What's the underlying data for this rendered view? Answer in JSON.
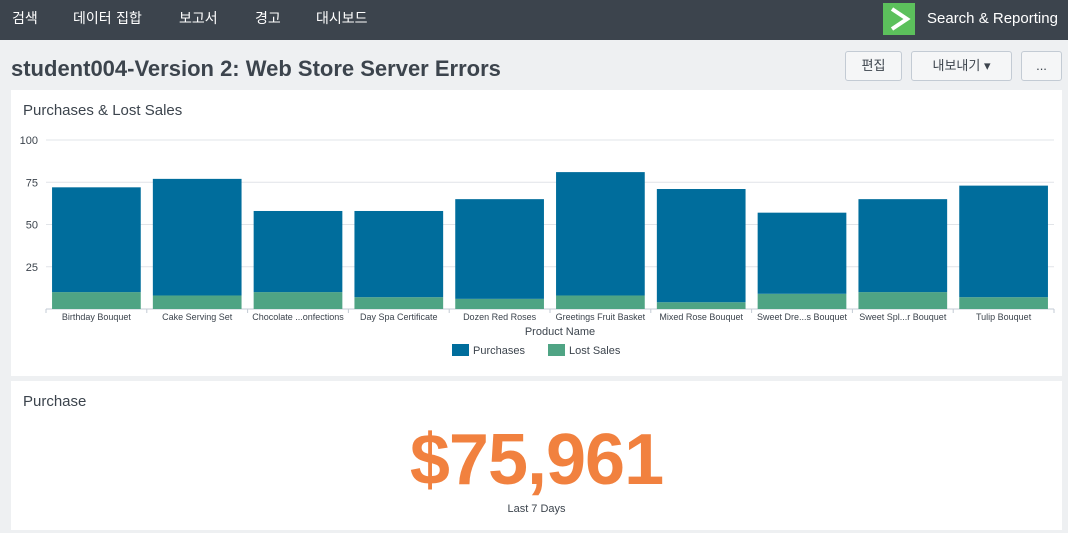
{
  "nav": {
    "items": [
      "검색",
      "데이터 집합",
      "보고서",
      "경고",
      "대시보드"
    ],
    "app_name": "Search & Reporting"
  },
  "page": {
    "title": "student004-Version 2: Web Store Server Errors",
    "edit_label": "편집",
    "export_label": "내보내기 ▾",
    "more_label": "..."
  },
  "panel1": {
    "title": "Purchases & Lost Sales"
  },
  "panel2": {
    "title": "Purchase",
    "value": "$75,961",
    "caption": "Last 7 Days"
  },
  "colors": {
    "purchases": "#006d9c",
    "lost_sales": "#4fa484",
    "accent": "#f1813f"
  },
  "chart_data": {
    "type": "bar",
    "stacked": true,
    "categories": [
      "Birthday Bouquet",
      "Cake Serving Set",
      "Chocolate ...onfections",
      "Day Spa Certificate",
      "Dozen Red Roses",
      "Greetings Fruit Basket",
      "Mixed Rose Bouquet",
      "Sweet Dre...s Bouquet",
      "Sweet Spl...r Bouquet",
      "Tulip Bouquet"
    ],
    "series": [
      {
        "name": "Purchases",
        "values": [
          62,
          69,
          48,
          51,
          59,
          73,
          67,
          48,
          55,
          66
        ]
      },
      {
        "name": "Lost Sales",
        "values": [
          10,
          8,
          10,
          7,
          6,
          8,
          4,
          9,
          10,
          7
        ]
      }
    ],
    "xlabel": "Product Name",
    "ylabel": "",
    "yticks": [
      25,
      50,
      75,
      100
    ],
    "ylim": [
      0,
      100
    ],
    "grid": true,
    "legend": "bottom"
  }
}
